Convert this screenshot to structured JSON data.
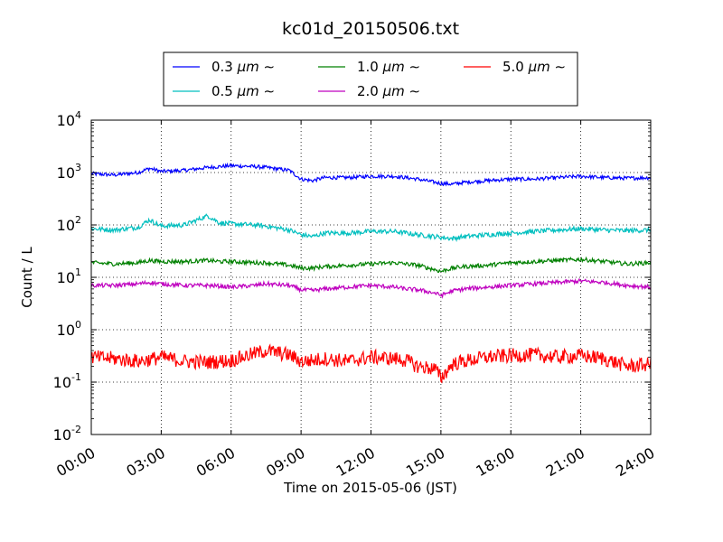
{
  "chart_data": {
    "type": "line",
    "title": "kc01d_20150506.txt",
    "xlabel": "Time on 2015-05-06 (JST)",
    "ylabel": "Count / L",
    "xscale": "linear",
    "yscale": "log",
    "xlim": [
      "00:00",
      "24:00"
    ],
    "ylim": [
      0.01,
      10000
    ],
    "grid": true,
    "legend_position": "top, outside plot, 3 columns",
    "x_ticks": [
      "00:00",
      "03:00",
      "06:00",
      "09:00",
      "12:00",
      "15:00",
      "18:00",
      "21:00",
      "24:00"
    ],
    "y_ticks": [
      {
        "base": "10",
        "exp": "-2"
      },
      {
        "base": "10",
        "exp": "-1"
      },
      {
        "base": "10",
        "exp": "0"
      },
      {
        "base": "10",
        "exp": "1"
      },
      {
        "base": "10",
        "exp": "2"
      },
      {
        "base": "10",
        "exp": "3"
      },
      {
        "base": "10",
        "exp": "4"
      }
    ],
    "x": [
      "00:00",
      "01:00",
      "02:00",
      "02:30",
      "03:00",
      "04:00",
      "05:00",
      "05:30",
      "06:00",
      "07:00",
      "07:30",
      "08:30",
      "09:00",
      "09:30",
      "10:00",
      "11:00",
      "12:00",
      "13:00",
      "13:30",
      "14:00",
      "14:45",
      "15:00",
      "15:30",
      "16:00",
      "17:00",
      "18:00",
      "19:00",
      "20:00",
      "21:00",
      "22:00",
      "23:00",
      "24:00"
    ],
    "series": [
      {
        "name": "0.3",
        "color": "#0000ff",
        "values": [
          950,
          900,
          1000,
          1200,
          1050,
          1100,
          1250,
          1300,
          1350,
          1300,
          1250,
          1100,
          750,
          700,
          800,
          800,
          850,
          850,
          800,
          750,
          650,
          620,
          600,
          650,
          700,
          750,
          750,
          800,
          850,
          800,
          780,
          800
        ]
      },
      {
        "name": "0.5",
        "color": "#00bfbf",
        "values": [
          85,
          80,
          90,
          125,
          95,
          100,
          150,
          110,
          105,
          100,
          95,
          80,
          65,
          60,
          70,
          70,
          75,
          75,
          70,
          65,
          60,
          58,
          55,
          60,
          65,
          70,
          75,
          80,
          85,
          80,
          78,
          80
        ]
      },
      {
        "name": "1.0",
        "color": "#008000",
        "values": [
          19,
          18,
          19,
          21,
          20,
          20,
          21,
          20,
          20,
          19,
          19,
          17,
          15,
          15,
          16,
          17,
          18,
          19,
          18,
          17,
          14,
          13,
          15,
          16,
          17,
          19,
          20,
          21,
          22,
          20,
          18,
          19
        ]
      },
      {
        "name": "2.0",
        "color": "#bf00bf",
        "values": [
          7,
          7,
          7.5,
          8,
          7.5,
          7,
          7,
          6.8,
          6.5,
          7,
          7.5,
          7,
          5.8,
          5.6,
          6,
          6.5,
          7,
          6.5,
          6,
          5.8,
          5,
          4.5,
          5.5,
          6,
          6.5,
          7,
          7.5,
          8,
          8.5,
          8,
          7,
          6.5
        ]
      },
      {
        "name": "5.0",
        "color": "#ff0000",
        "values": [
          0.3,
          0.28,
          0.25,
          0.27,
          0.3,
          0.25,
          0.24,
          0.25,
          0.26,
          0.35,
          0.4,
          0.33,
          0.25,
          0.26,
          0.28,
          0.25,
          0.3,
          0.28,
          0.26,
          0.2,
          0.18,
          0.12,
          0.22,
          0.25,
          0.3,
          0.32,
          0.33,
          0.3,
          0.32,
          0.28,
          0.2,
          0.22
        ]
      }
    ],
    "legend_unit": "μm",
    "legend_suffix": "∼"
  }
}
